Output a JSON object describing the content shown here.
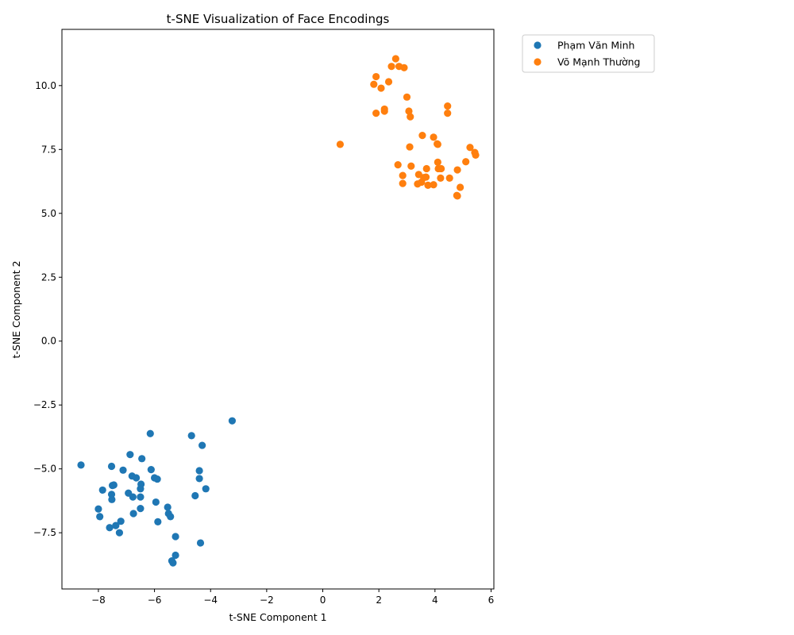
{
  "chart_data": {
    "type": "scatter",
    "title": "t-SNE Visualization of Face Encodings",
    "xlabel": "t-SNE Component 1",
    "ylabel": "t-SNE Component 2",
    "xlim": [
      -9.3,
      6.1
    ],
    "ylim": [
      -9.7,
      12.2
    ],
    "xticks": [
      -8,
      -6,
      -4,
      -2,
      0,
      2,
      4,
      6
    ],
    "yticks": [
      -7.5,
      -5.0,
      -2.5,
      0.0,
      2.5,
      5.0,
      7.5,
      10.0
    ],
    "xtick_labels": [
      "−8",
      "−6",
      "−4",
      "−2",
      "0",
      "2",
      "4",
      "6"
    ],
    "ytick_labels": [
      "−7.5",
      "−5.0",
      "−2.5",
      "0.0",
      "2.5",
      "5.0",
      "7.5",
      "10.0"
    ],
    "grid": false,
    "legend_position": "outside-top-right",
    "series": [
      {
        "name": "Phạm Văn Minh",
        "color": "#1f77b4",
        "points": [
          [
            -8.62,
            -4.85
          ],
          [
            -7.53,
            -4.9
          ],
          [
            -6.87,
            -4.44
          ],
          [
            -6.45,
            -4.6
          ],
          [
            -6.15,
            -3.62
          ],
          [
            -4.68,
            -3.7
          ],
          [
            -4.3,
            -4.08
          ],
          [
            -3.23,
            -3.12
          ],
          [
            -7.12,
            -5.05
          ],
          [
            -6.12,
            -5.03
          ],
          [
            -6.8,
            -5.28
          ],
          [
            -6.65,
            -5.35
          ],
          [
            -6.0,
            -5.35
          ],
          [
            -5.9,
            -5.4
          ],
          [
            -7.5,
            -5.65
          ],
          [
            -7.45,
            -5.63
          ],
          [
            -7.85,
            -5.83
          ],
          [
            -6.48,
            -5.6
          ],
          [
            -6.5,
            -5.78
          ],
          [
            -4.4,
            -5.07
          ],
          [
            -4.4,
            -5.38
          ],
          [
            -4.17,
            -5.78
          ],
          [
            -4.55,
            -6.05
          ],
          [
            -7.53,
            -6.0
          ],
          [
            -7.52,
            -6.2
          ],
          [
            -6.93,
            -5.95
          ],
          [
            -6.77,
            -6.1
          ],
          [
            -6.5,
            -6.1
          ],
          [
            -5.95,
            -6.3
          ],
          [
            -8.0,
            -6.57
          ],
          [
            -7.95,
            -6.87
          ],
          [
            -6.5,
            -6.55
          ],
          [
            -6.75,
            -6.75
          ],
          [
            -5.53,
            -6.5
          ],
          [
            -5.5,
            -6.75
          ],
          [
            -5.43,
            -6.87
          ],
          [
            -7.2,
            -7.05
          ],
          [
            -5.88,
            -7.07
          ],
          [
            -7.6,
            -7.3
          ],
          [
            -7.38,
            -7.22
          ],
          [
            -7.25,
            -7.5
          ],
          [
            -5.25,
            -7.65
          ],
          [
            -4.36,
            -7.9
          ],
          [
            -5.25,
            -8.38
          ],
          [
            -5.38,
            -8.6
          ],
          [
            -5.34,
            -8.68
          ]
        ]
      },
      {
        "name": "Võ Mạnh Thường",
        "color": "#ff7f0e",
        "points": [
          [
            2.6,
            11.05
          ],
          [
            2.45,
            10.75
          ],
          [
            2.72,
            10.75
          ],
          [
            2.9,
            10.7
          ],
          [
            1.9,
            10.35
          ],
          [
            2.35,
            10.15
          ],
          [
            1.82,
            10.05
          ],
          [
            2.08,
            9.9
          ],
          [
            3.0,
            9.55
          ],
          [
            4.45,
            9.2
          ],
          [
            2.2,
            9.08
          ],
          [
            2.2,
            9.0
          ],
          [
            3.07,
            9.0
          ],
          [
            4.45,
            8.92
          ],
          [
            1.9,
            8.92
          ],
          [
            3.12,
            8.78
          ],
          [
            0.62,
            7.7
          ],
          [
            3.55,
            8.05
          ],
          [
            3.95,
            7.98
          ],
          [
            4.1,
            7.7
          ],
          [
            4.08,
            7.72
          ],
          [
            3.1,
            7.6
          ],
          [
            5.25,
            7.58
          ],
          [
            5.42,
            7.38
          ],
          [
            5.45,
            7.28
          ],
          [
            4.1,
            7.0
          ],
          [
            5.1,
            7.02
          ],
          [
            2.68,
            6.9
          ],
          [
            3.15,
            6.85
          ],
          [
            3.7,
            6.75
          ],
          [
            4.12,
            6.75
          ],
          [
            4.22,
            6.75
          ],
          [
            4.8,
            6.7
          ],
          [
            2.85,
            6.48
          ],
          [
            3.42,
            6.52
          ],
          [
            3.6,
            6.4
          ],
          [
            3.68,
            6.42
          ],
          [
            4.2,
            6.38
          ],
          [
            4.52,
            6.38
          ],
          [
            2.85,
            6.17
          ],
          [
            3.38,
            6.15
          ],
          [
            3.52,
            6.22
          ],
          [
            3.75,
            6.1
          ],
          [
            3.95,
            6.12
          ],
          [
            4.9,
            6.02
          ],
          [
            4.8,
            5.68
          ],
          [
            4.78,
            5.7
          ]
        ]
      }
    ]
  }
}
